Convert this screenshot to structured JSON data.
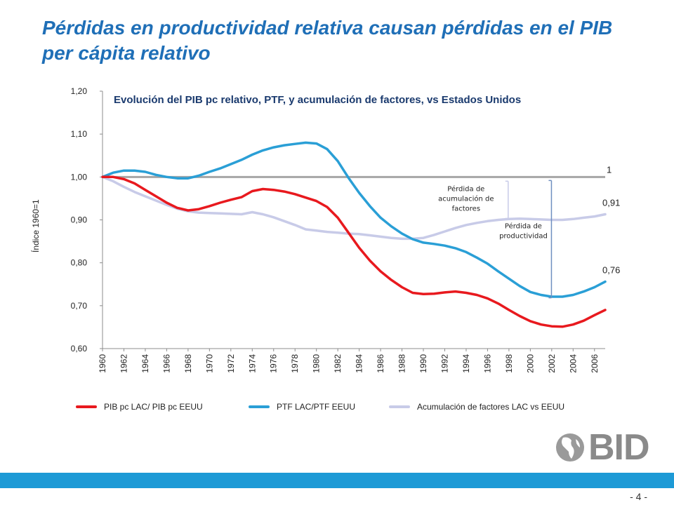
{
  "slide": {
    "title": "Pérdidas en productividad relativa causan pérdidas en el PIB per cápita relativo",
    "page_number": "- 4 -",
    "logo_text": "BID"
  },
  "colors": {
    "title": "#1f6fb7",
    "footer_bar": "#1d9ad6"
  },
  "chart_data": {
    "type": "line",
    "title": "Evolución del PIB pc relativo, PTF, y acumulación de factores, vs Estados Unidos",
    "xlabel": "",
    "ylabel": "Índice 1960=1",
    "ylim": [
      0.6,
      1.2
    ],
    "y_ticks": [
      "0,60",
      "0,70",
      "0,80",
      "0,90",
      "1,00",
      "1,10",
      "1,20"
    ],
    "x": [
      1960,
      1961,
      1962,
      1963,
      1964,
      1965,
      1966,
      1967,
      1968,
      1969,
      1970,
      1971,
      1972,
      1973,
      1974,
      1975,
      1976,
      1977,
      1978,
      1979,
      1980,
      1981,
      1982,
      1983,
      1984,
      1985,
      1986,
      1987,
      1988,
      1989,
      1990,
      1991,
      1992,
      1993,
      1994,
      1995,
      1996,
      1997,
      1998,
      1999,
      2000,
      2001,
      2002,
      2003,
      2004,
      2005,
      2006,
      2007
    ],
    "x_tick_labels": [
      "1960",
      "1962",
      "1964",
      "1966",
      "1968",
      "1970",
      "1972",
      "1974",
      "1976",
      "1978",
      "1980",
      "1982",
      "1984",
      "1986",
      "1988",
      "1990",
      "1992",
      "1994",
      "1996",
      "1998",
      "2000",
      "2002",
      "2004",
      "2006"
    ],
    "reference_line": {
      "value": 1.0,
      "label": "1",
      "color": "#a6a6a6"
    },
    "series": [
      {
        "name": "PIB pc LAC/ PIB pc EEUU",
        "color": "#e8191e",
        "end_label": "",
        "values": [
          1.0,
          1.0,
          0.995,
          0.985,
          0.97,
          0.955,
          0.94,
          0.928,
          0.922,
          0.925,
          0.932,
          0.94,
          0.947,
          0.953,
          0.967,
          0.972,
          0.97,
          0.966,
          0.96,
          0.952,
          0.944,
          0.93,
          0.905,
          0.87,
          0.835,
          0.805,
          0.78,
          0.76,
          0.743,
          0.73,
          0.727,
          0.728,
          0.731,
          0.733,
          0.73,
          0.725,
          0.717,
          0.705,
          0.69,
          0.676,
          0.664,
          0.656,
          0.652,
          0.651,
          0.656,
          0.665,
          0.678,
          0.69
        ]
      },
      {
        "name": "PTF LAC/PTF EEUU",
        "color": "#2a9fd6",
        "end_label": "0,76",
        "values": [
          1.0,
          1.01,
          1.015,
          1.015,
          1.012,
          1.005,
          1.0,
          0.997,
          0.997,
          1.003,
          1.012,
          1.02,
          1.03,
          1.04,
          1.052,
          1.062,
          1.069,
          1.074,
          1.077,
          1.08,
          1.078,
          1.065,
          1.037,
          0.998,
          0.963,
          0.932,
          0.905,
          0.885,
          0.868,
          0.855,
          0.847,
          0.844,
          0.84,
          0.834,
          0.825,
          0.812,
          0.798,
          0.78,
          0.763,
          0.746,
          0.732,
          0.725,
          0.721,
          0.721,
          0.725,
          0.733,
          0.743,
          0.756
        ]
      },
      {
        "name": "Acumulación de factores LAC vs EEUU",
        "color": "#c8cbe8",
        "end_label": "0,91",
        "values": [
          1.0,
          0.99,
          0.977,
          0.965,
          0.955,
          0.945,
          0.935,
          0.926,
          0.92,
          0.917,
          0.916,
          0.915,
          0.914,
          0.913,
          0.918,
          0.913,
          0.906,
          0.897,
          0.888,
          0.878,
          0.875,
          0.872,
          0.87,
          0.868,
          0.867,
          0.864,
          0.861,
          0.858,
          0.856,
          0.856,
          0.858,
          0.865,
          0.873,
          0.881,
          0.888,
          0.893,
          0.897,
          0.9,
          0.902,
          0.903,
          0.902,
          0.901,
          0.9,
          0.9,
          0.902,
          0.905,
          0.908,
          0.913
        ]
      }
    ],
    "annotations": [
      {
        "text": "Pérdida de acumulación de factores",
        "x": 2002,
        "from": 1.0,
        "to": 0.9
      },
      {
        "text": "Pérdida de productividad",
        "x": 2002.5,
        "from": 1.0,
        "to": 0.72
      }
    ]
  }
}
